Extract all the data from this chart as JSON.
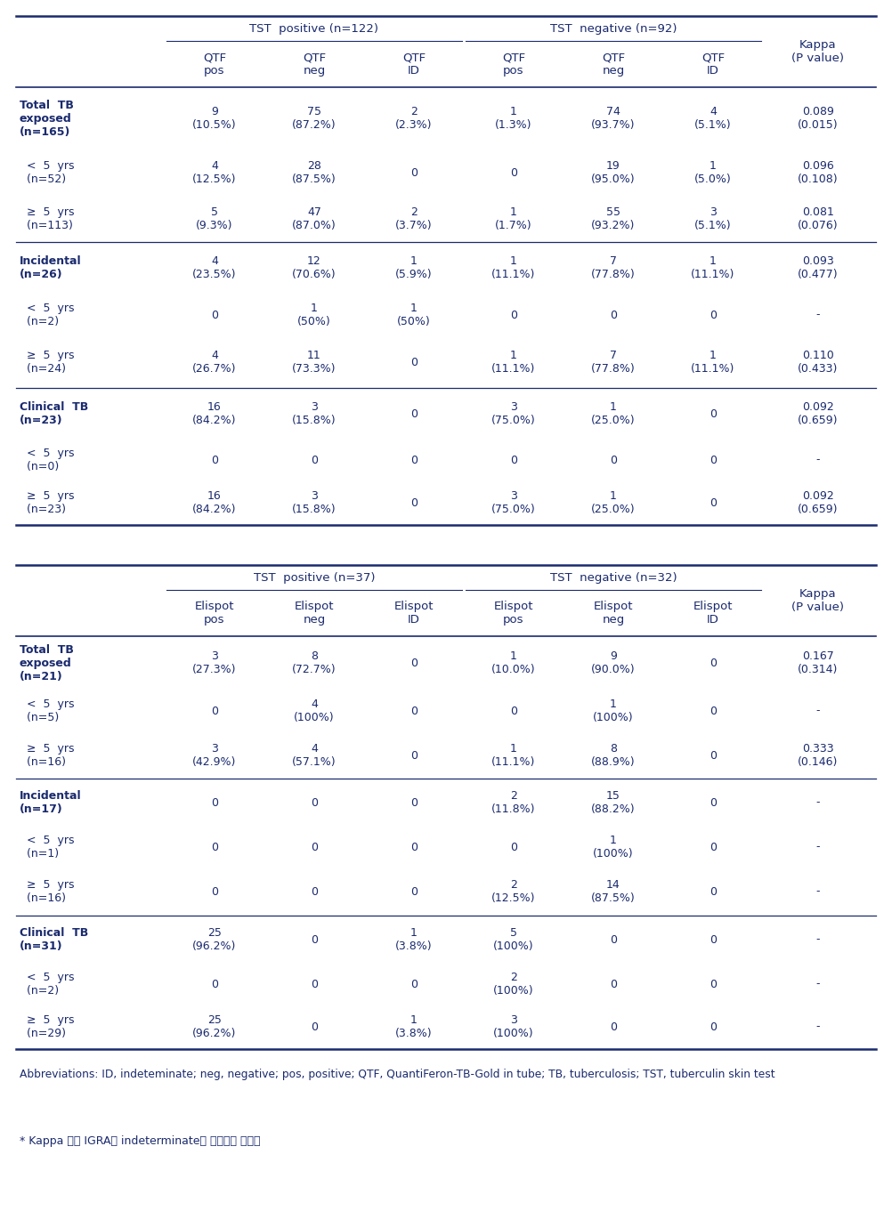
{
  "table1": {
    "col_headers": [
      "QTF\npos",
      "QTF\nneg",
      "QTF\nID",
      "QTF\npos",
      "QTF\nneg",
      "QTF\nID"
    ],
    "group1_label": "TST  positive (n=122)",
    "group2_label": "TST  negative (n=92)",
    "kappa_header": "Kappa\n(P value)",
    "rows": [
      {
        "label": "Total  TB\nexposed\n(n=165)",
        "bold": true,
        "data": [
          "9\n(10.5%)",
          "75\n(87.2%)",
          "2\n(2.3%)",
          "1\n(1.3%)",
          "74\n(93.7%)",
          "4\n(5.1%)"
        ],
        "kappa": "0.089\n(0.015)",
        "top_border": true
      },
      {
        "label": "  <  5  yrs\n  (n=52)",
        "bold": false,
        "data": [
          "4\n(12.5%)",
          "28\n(87.5%)",
          "0",
          "0",
          "19\n(95.0%)",
          "1\n(5.0%)"
        ],
        "kappa": "0.096\n(0.108)",
        "top_border": false
      },
      {
        "label": "  ≥  5  yrs\n  (n=113)",
        "bold": false,
        "data": [
          "5\n(9.3%)",
          "47\n(87.0%)",
          "2\n(3.7%)",
          "1\n(1.7%)",
          "55\n(93.2%)",
          "3\n(5.1%)"
        ],
        "kappa": "0.081\n(0.076)",
        "top_border": false
      },
      {
        "label": "Incidental\n(n=26)",
        "bold": true,
        "data": [
          "4\n(23.5%)",
          "12\n(70.6%)",
          "1\n(5.9%)",
          "1\n(11.1%)",
          "7\n(77.8%)",
          "1\n(11.1%)"
        ],
        "kappa": "0.093\n(0.477)",
        "top_border": true
      },
      {
        "label": "  <  5  yrs\n  (n=2)",
        "bold": false,
        "data": [
          "0",
          "1\n(50%)",
          "1\n(50%)",
          "0",
          "0",
          "0"
        ],
        "kappa": "-",
        "top_border": false
      },
      {
        "label": "  ≥  5  yrs\n  (n=24)",
        "bold": false,
        "data": [
          "4\n(26.7%)",
          "11\n(73.3%)",
          "0",
          "1\n(11.1%)",
          "7\n(77.8%)",
          "1\n(11.1%)"
        ],
        "kappa": "0.110\n(0.433)",
        "top_border": false
      },
      {
        "label": "Clinical  TB\n(n=23)",
        "bold": true,
        "data": [
          "16\n(84.2%)",
          "3\n(15.8%)",
          "0",
          "3\n(75.0%)",
          "1\n(25.0%)",
          "0"
        ],
        "kappa": "0.092\n(0.659)",
        "top_border": true
      },
      {
        "label": "  <  5  yrs\n  (n=0)",
        "bold": false,
        "data": [
          "0",
          "0",
          "0",
          "0",
          "0",
          "0"
        ],
        "kappa": "-",
        "top_border": false
      },
      {
        "label": "  ≥  5  yrs\n  (n=23)",
        "bold": false,
        "data": [
          "16\n(84.2%)",
          "3\n(15.8%)",
          "0",
          "3\n(75.0%)",
          "1\n(25.0%)",
          "0"
        ],
        "kappa": "0.092\n(0.659)",
        "top_border": false
      }
    ]
  },
  "table2": {
    "col_headers": [
      "Elispot\npos",
      "Elispot\nneg",
      "Elispot\nID",
      "Elispot\npos",
      "Elispot\nneg",
      "Elispot\nID"
    ],
    "group1_label": "TST  positive (n=37)",
    "group2_label": "TST  negative (n=32)",
    "kappa_header": "Kappa\n(P value)",
    "rows": [
      {
        "label": "Total  TB\nexposed\n(n=21)",
        "bold": true,
        "data": [
          "3\n(27.3%)",
          "8\n(72.7%)",
          "0",
          "1\n(10.0%)",
          "9\n(90.0%)",
          "0"
        ],
        "kappa": "0.167\n(0.314)",
        "top_border": true
      },
      {
        "label": "  <  5  yrs\n  (n=5)",
        "bold": false,
        "data": [
          "0",
          "4\n(100%)",
          "0",
          "0",
          "1\n(100%)",
          "0"
        ],
        "kappa": "-",
        "top_border": false
      },
      {
        "label": "  ≥  5  yrs\n  (n=16)",
        "bold": false,
        "data": [
          "3\n(42.9%)",
          "4\n(57.1%)",
          "0",
          "1\n(11.1%)",
          "8\n(88.9%)",
          "0"
        ],
        "kappa": "0.333\n(0.146)",
        "top_border": false
      },
      {
        "label": "Incidental\n(n=17)",
        "bold": true,
        "data": [
          "0",
          "0",
          "0",
          "2\n(11.8%)",
          "15\n(88.2%)",
          "0"
        ],
        "kappa": "-",
        "top_border": true
      },
      {
        "label": "  <  5  yrs\n  (n=1)",
        "bold": false,
        "data": [
          "0",
          "0",
          "0",
          "0",
          "1\n(100%)",
          "0"
        ],
        "kappa": "-",
        "top_border": false
      },
      {
        "label": "  ≥  5  yrs\n  (n=16)",
        "bold": false,
        "data": [
          "0",
          "0",
          "0",
          "2\n(12.5%)",
          "14\n(87.5%)",
          "0"
        ],
        "kappa": "-",
        "top_border": false
      },
      {
        "label": "Clinical  TB\n(n=31)",
        "bold": true,
        "data": [
          "25\n(96.2%)",
          "0",
          "1\n(3.8%)",
          "5\n(100%)",
          "0",
          "0"
        ],
        "kappa": "-",
        "top_border": true
      },
      {
        "label": "  <  5  yrs\n  (n=2)",
        "bold": false,
        "data": [
          "0",
          "0",
          "0",
          "2\n(100%)",
          "0",
          "0"
        ],
        "kappa": "-",
        "top_border": false
      },
      {
        "label": "  ≥  5  yrs\n  (n=29)",
        "bold": false,
        "data": [
          "25\n(96.2%)",
          "0",
          "1\n(3.8%)",
          "3\n(100%)",
          "0",
          "0"
        ],
        "kappa": "-",
        "top_border": false
      }
    ]
  },
  "abbreviations": "Abbreviations: ID, indeteminate; neg, negative; pos, positive; QTF, QuantiFeron-TB-Gold in tube; TB, tuberculosis; TST, tuberculin skin test",
  "footnote": "* Kappa 값은 IGRA의 indeterminate는 무시하고 계산함",
  "text_color": "#1a2a6e",
  "line_color": "#1a2a6e",
  "bg_color": "#ffffff",
  "fontsize_header": 9.5,
  "fontsize_data": 9.0,
  "fontsize_abbr": 8.8
}
